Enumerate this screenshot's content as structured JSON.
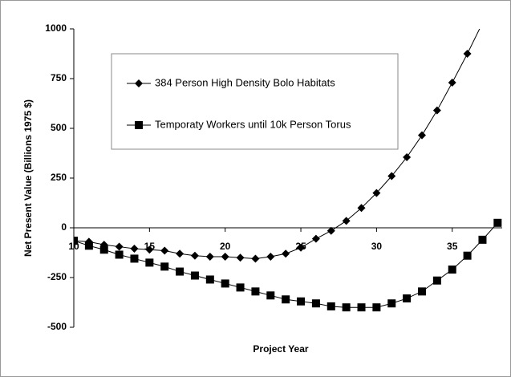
{
  "chart_data": {
    "type": "line",
    "x_label": "Project Year",
    "y_label": "Net Present Value (Billions 1975 $)",
    "xlim": [
      10,
      38.3
    ],
    "xticks": [
      10,
      15,
      20,
      25,
      30,
      35
    ],
    "ylim": [
      -500,
      1000
    ],
    "yticks": [
      -500,
      -250,
      0,
      250,
      500,
      750,
      1000
    ],
    "series": [
      {
        "name": "384 Person High Density Bolo Habitats",
        "color": "#000000",
        "marker": "diamond",
        "x": [
          10,
          11,
          12,
          13,
          14,
          15,
          16,
          17,
          18,
          19,
          20,
          21,
          22,
          23,
          24,
          25,
          26,
          27,
          28,
          29,
          30,
          31,
          32,
          33,
          34,
          35,
          36,
          37
        ],
        "values": [
          -65,
          -70,
          -85,
          -95,
          -105,
          -110,
          -115,
          -130,
          -140,
          -145,
          -145,
          -150,
          -155,
          -145,
          -130,
          -100,
          -55,
          -15,
          35,
          100,
          175,
          260,
          355,
          465,
          590,
          730,
          875,
          1030
        ]
      },
      {
        "name": "Temporaty Workers until 10k Person Torus",
        "color": "#000000",
        "marker": "square",
        "x": [
          10,
          11,
          12,
          13,
          14,
          15,
          16,
          17,
          18,
          19,
          20,
          21,
          22,
          23,
          24,
          25,
          26,
          27,
          28,
          29,
          30,
          31,
          32,
          33,
          34,
          35,
          36,
          37,
          38
        ],
        "values": [
          -65,
          -90,
          -110,
          -135,
          -155,
          -175,
          -195,
          -220,
          -240,
          -260,
          -280,
          -300,
          -320,
          -340,
          -360,
          -370,
          -380,
          -395,
          -400,
          -400,
          -400,
          -380,
          -355,
          -320,
          -265,
          -210,
          -140,
          -60,
          25
        ]
      }
    ]
  }
}
